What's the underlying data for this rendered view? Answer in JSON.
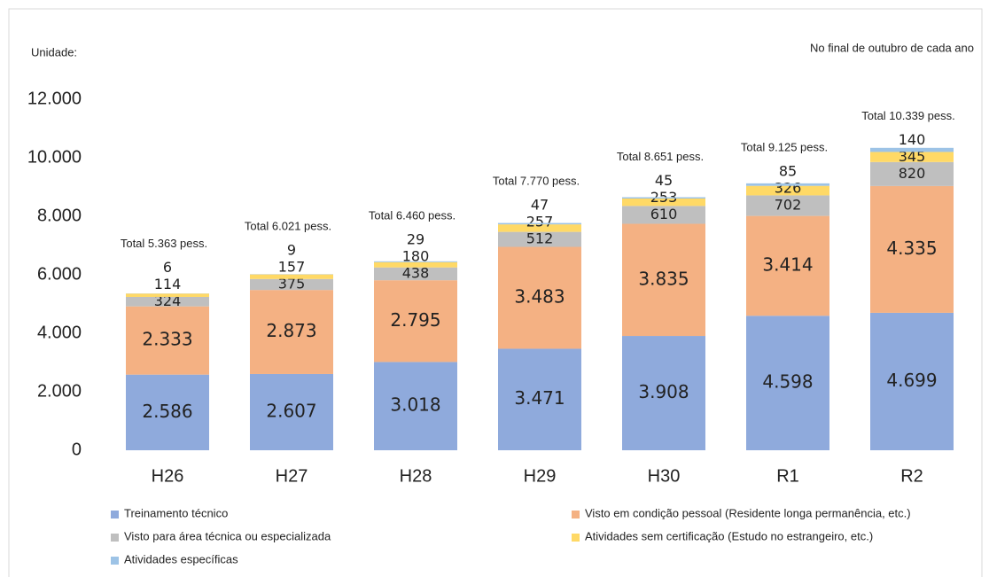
{
  "chart_data": {
    "type": "stacked_bar",
    "unit_label": "Unidade:",
    "note": "No final de outubro de cada ano",
    "categories": [
      "H26",
      "H27",
      "H28",
      "H29",
      "H30",
      "R1",
      "R2"
    ],
    "series": [
      {
        "name": "Treinamento técnico",
        "color": "#8faadc",
        "values": [
          2586,
          2607,
          3018,
          3471,
          3908,
          4598,
          4699
        ],
        "value_labels": [
          "2.586",
          "2.607",
          "3.018",
          "3.471",
          "3.908",
          "4.598",
          "4.699"
        ]
      },
      {
        "name": "Visto em condição pessoal (Residente longa permanência, etc.)",
        "color": "#f4b183",
        "values": [
          2333,
          2873,
          2795,
          3483,
          3835,
          3414,
          4335
        ],
        "value_labels": [
          "2.333",
          "2.873",
          "2.795",
          "3.483",
          "3.835",
          "3.414",
          "4.335"
        ]
      },
      {
        "name": "Visto para área técnica ou especializada",
        "color": "#bfbfbf",
        "values": [
          324,
          375,
          438,
          512,
          610,
          702,
          820
        ]
      },
      {
        "name": "Atividades sem certificação (Estudo no estrangeiro, etc.)",
        "color": "#ffd966",
        "values": [
          114,
          157,
          180,
          257,
          253,
          326,
          345
        ]
      },
      {
        "name": "Atividades específicas",
        "color": "#9dc3e6",
        "values": [
          6,
          9,
          29,
          47,
          45,
          85,
          140
        ]
      }
    ],
    "totals": [
      "Total 5.363 pess.",
      "Total 6.021 pess.",
      "Total 6.460 pess.",
      "Total 7.770 pess.",
      "Total 8.651 pess.",
      "Total 9.125 pess.",
      "Total 10.339 pess."
    ],
    "ylim": [
      0,
      12000
    ],
    "yticks": [
      0,
      {
        "value": 2000,
        "label": "2.000"
      },
      {
        "value": 4000,
        "label": "4.000"
      },
      {
        "value": 6000,
        "label": "6.000"
      },
      {
        "value": 8000,
        "label": "8.000"
      },
      {
        "value": 10000,
        "label": "10.000"
      },
      {
        "value": 12000,
        "label": "12.000"
      }
    ],
    "grid": false
  }
}
